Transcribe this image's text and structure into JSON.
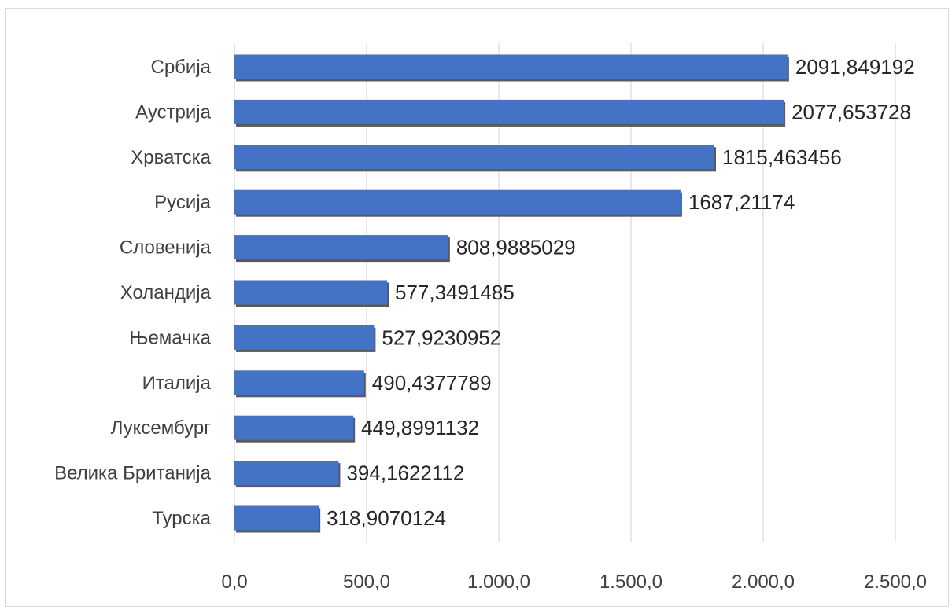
{
  "chart_data": {
    "type": "bar",
    "orientation": "horizontal",
    "categories": [
      "Србија",
      "Аустрија",
      "Хрватска",
      "Русија",
      "Словенија",
      "Холандија",
      "Њемачка",
      "Италија",
      "Луксембург",
      "Велика Британија",
      "Турска"
    ],
    "values": [
      2091.849192,
      2077.653728,
      1815.463456,
      1687.21174,
      808.9885029,
      577.3491485,
      527.9230952,
      490.4377789,
      449.8991132,
      394.1622112,
      318.9070124
    ],
    "value_labels": [
      "2091,849192",
      "2077,653728",
      "1815,463456",
      "1687,21174",
      "808,9885029",
      "577,3491485",
      "527,9230952",
      "490,4377789",
      "449,8991132",
      "394,1622112",
      "318,9070124"
    ],
    "xlim": [
      0,
      2500
    ],
    "x_ticks": [
      0,
      500,
      1000,
      1500,
      2000,
      2500
    ],
    "x_tick_labels": [
      "0,0",
      "500,0",
      "1.000,0",
      "1.500,0",
      "2.000,0",
      "2.500,0"
    ],
    "grid": "vertical",
    "legend": "none",
    "colors": {
      "bar": "#4472c4",
      "bar_shadow": "#595959",
      "gridline": "#d9d9d9",
      "text": "#404040"
    }
  }
}
